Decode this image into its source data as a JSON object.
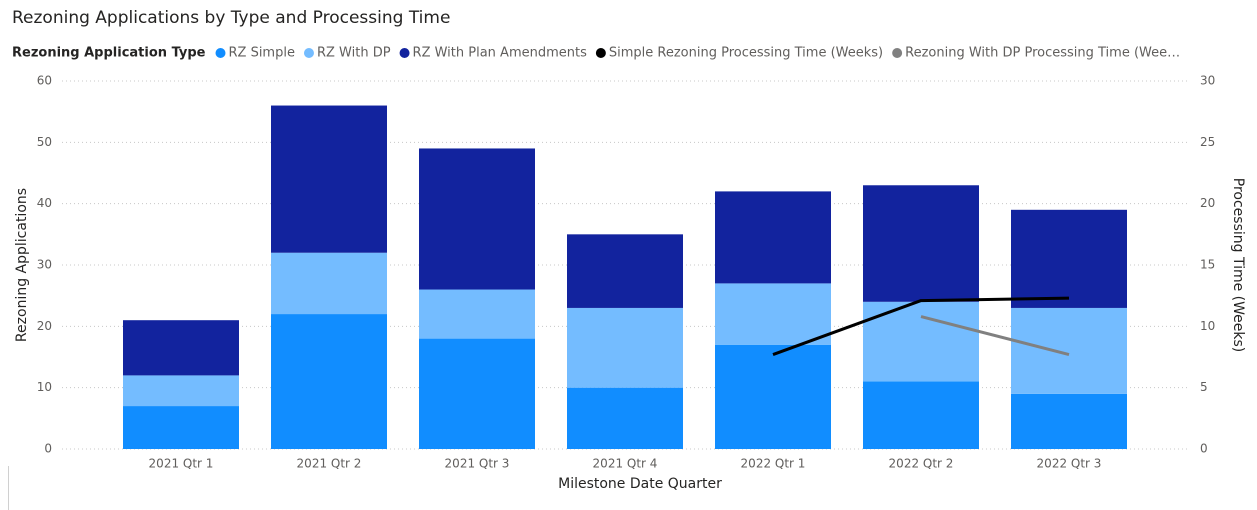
{
  "chart_data": {
    "type": "bar",
    "title": "Rezoning Applications by Type and Processing Time",
    "legend_title": "Rezoning Application Type",
    "x_label": "Milestone Date Quarter",
    "y_label": "Rezoning Applications",
    "y2_label": "Processing Time (Weeks)",
    "categories": [
      "2021 Qtr 1",
      "2021 Qtr 2",
      "2021 Qtr 3",
      "2021 Qtr 4",
      "2022 Qtr 1",
      "2022 Qtr 2",
      "2022 Qtr 3"
    ],
    "series": [
      {
        "name": "RZ Simple",
        "color": "#118DFF",
        "values": [
          7,
          22,
          18,
          10,
          17,
          11,
          9
        ]
      },
      {
        "name": "RZ With DP",
        "color": "#74BCFF",
        "values": [
          5,
          10,
          8,
          13,
          10,
          13,
          14
        ]
      },
      {
        "name": "RZ With Plan Amendments",
        "color": "#12239E",
        "values": [
          9,
          24,
          23,
          12,
          15,
          19,
          16
        ]
      },
      {
        "name": "Simple Rezoning Processing Time (Weeks)",
        "color": "#000000",
        "type": "line",
        "axis": "y2",
        "values": [
          null,
          null,
          null,
          null,
          7.7,
          12.1,
          12.3
        ]
      },
      {
        "name": "Rezoning With DP Processing Time (Wee…",
        "color": "#808080",
        "type": "line",
        "axis": "y2",
        "values": [
          null,
          null,
          null,
          null,
          null,
          10.8,
          7.7
        ]
      }
    ],
    "stacked": true,
    "ylim": [
      0,
      60
    ],
    "yticks": [
      0,
      10,
      20,
      30,
      40,
      50,
      60
    ],
    "y2lim": [
      0,
      30
    ],
    "y2ticks": [
      0,
      5,
      10,
      15,
      20,
      25,
      30
    ],
    "grid": true,
    "legend": "top"
  }
}
